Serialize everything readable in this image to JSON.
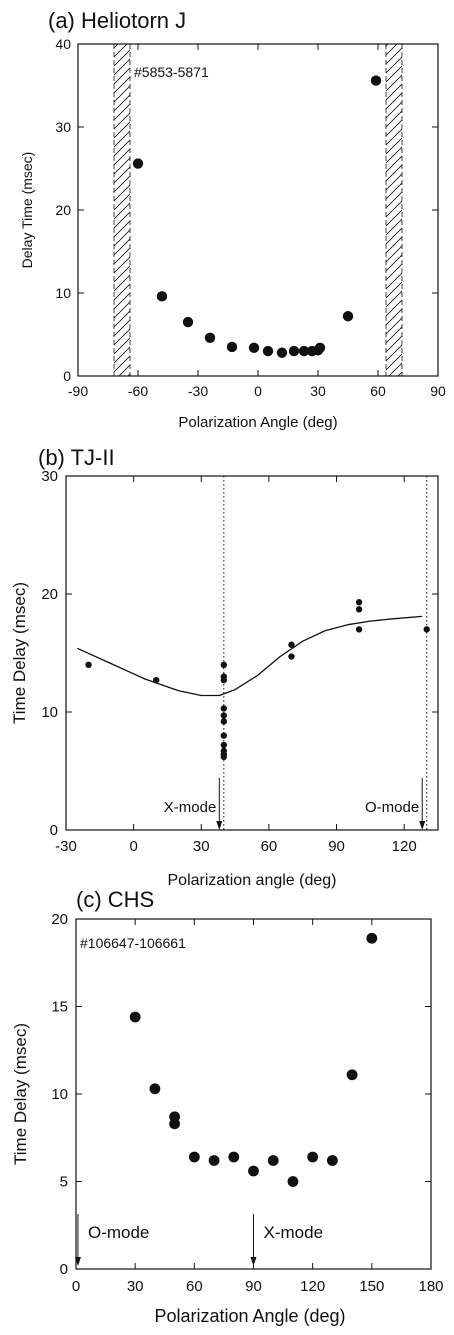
{
  "chart_data": [
    {
      "id": "a",
      "type": "scatter",
      "title": "(a) Heliotorn J",
      "annotation": "#5853-5871",
      "xlabel": "Polarization Angle (deg)",
      "ylabel": "Delay Time (msec)",
      "xlim": [
        -90,
        90
      ],
      "ylim": [
        0,
        40
      ],
      "xticks": [
        -90,
        -60,
        -30,
        0,
        30,
        60,
        90
      ],
      "yticks": [
        0,
        10,
        20,
        30,
        40
      ],
      "hatched_regions": [
        [
          -72,
          -64
        ],
        [
          64,
          72
        ]
      ],
      "series": [
        {
          "points": [
            [
              -60,
              25.6
            ],
            [
              -48,
              9.6
            ],
            [
              -35,
              6.5
            ],
            [
              -24,
              4.6
            ],
            [
              -13,
              3.5
            ],
            [
              -2,
              3.4
            ],
            [
              5,
              3.0
            ],
            [
              12,
              2.8
            ],
            [
              18,
              3.0
            ],
            [
              23,
              3.0
            ],
            [
              27,
              3.0
            ],
            [
              30,
              3.1
            ],
            [
              31,
              3.4
            ],
            [
              45,
              7.2
            ],
            [
              59,
              35.6
            ]
          ]
        }
      ],
      "grid": false
    },
    {
      "id": "b",
      "type": "scatter",
      "title": "(b) TJ-II",
      "xlabel": "Polarization angle (deg)",
      "ylabel": "Time Delay (msec)",
      "xlim": [
        -30,
        135
      ],
      "ylim": [
        0,
        30
      ],
      "xticks": [
        -30,
        0,
        30,
        60,
        90,
        120
      ],
      "yticks": [
        0,
        10,
        20,
        30
      ],
      "vlines": [
        40,
        130
      ],
      "markers": [
        {
          "label": "X-mode",
          "x": 38
        },
        {
          "label": "O-mode",
          "x": 128
        }
      ],
      "series": [
        {
          "points": [
            [
              -20,
              14.0
            ],
            [
              10,
              12.7
            ],
            [
              40,
              14.0
            ],
            [
              40,
              13.0
            ],
            [
              40,
              12.7
            ],
            [
              40,
              10.3
            ],
            [
              40,
              9.7
            ],
            [
              40,
              9.2
            ],
            [
              40,
              8.0
            ],
            [
              40,
              7.2
            ],
            [
              40,
              6.7
            ],
            [
              40,
              6.4
            ],
            [
              40,
              6.2
            ],
            [
              70,
              15.7
            ],
            [
              70,
              14.7
            ],
            [
              100,
              19.3
            ],
            [
              100,
              18.7
            ],
            [
              100,
              17.0
            ],
            [
              130,
              17.0
            ]
          ]
        },
        {
          "fit": true,
          "points": [
            [
              -25,
              15.4
            ],
            [
              -10,
              14.1
            ],
            [
              5,
              12.8
            ],
            [
              20,
              11.8
            ],
            [
              30,
              11.4
            ],
            [
              38,
              11.4
            ],
            [
              45,
              11.9
            ],
            [
              55,
              13.1
            ],
            [
              65,
              14.7
            ],
            [
              75,
              16.0
            ],
            [
              85,
              16.9
            ],
            [
              95,
              17.4
            ],
            [
              105,
              17.7
            ],
            [
              115,
              17.9
            ],
            [
              128,
              18.1
            ]
          ]
        }
      ],
      "grid": false
    },
    {
      "id": "c",
      "type": "scatter",
      "title": "(c) CHS",
      "annotation": "#106647-106661",
      "xlabel": "Polarization Angle (deg)",
      "ylabel": "Time Delay (msec)",
      "xlim": [
        0,
        180
      ],
      "ylim": [
        0,
        20
      ],
      "xticks": [
        0,
        30,
        60,
        90,
        120,
        150,
        180
      ],
      "yticks": [
        0,
        5,
        10,
        15,
        20
      ],
      "markers": [
        {
          "label": "O-mode",
          "x": 1
        },
        {
          "label": "X-mode",
          "x": 90
        }
      ],
      "series": [
        {
          "points": [
            [
              30,
              14.4
            ],
            [
              40,
              10.3
            ],
            [
              50,
              8.7
            ],
            [
              50,
              8.3
            ],
            [
              60,
              6.4
            ],
            [
              70,
              6.2
            ],
            [
              80,
              6.4
            ],
            [
              90,
              5.6
            ],
            [
              100,
              6.2
            ],
            [
              110,
              5.0
            ],
            [
              120,
              6.4
            ],
            [
              130,
              6.2
            ],
            [
              140,
              11.1
            ],
            [
              150,
              18.9
            ]
          ]
        }
      ],
      "grid": false
    }
  ]
}
